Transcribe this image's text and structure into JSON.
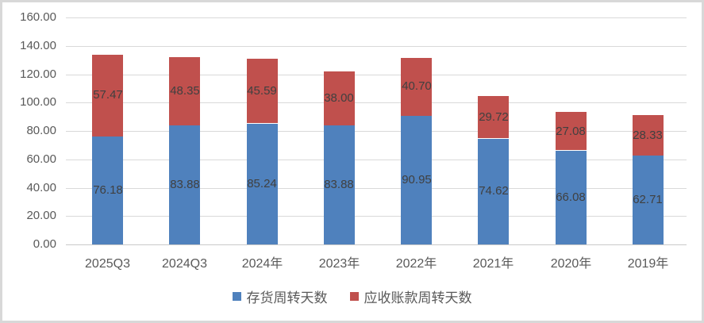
{
  "chart_data": {
    "type": "bar",
    "stacked": true,
    "title": "",
    "xlabel": "",
    "ylabel": "",
    "categories": [
      "2025Q3",
      "2024Q3",
      "2024年",
      "2023年",
      "2022年",
      "2021年",
      "2020年",
      "2019年"
    ],
    "series": [
      {
        "name": "存货周转天数",
        "color": "#4F81BD",
        "values": [
          76.18,
          83.88,
          85.24,
          83.88,
          90.95,
          74.62,
          66.08,
          62.71
        ]
      },
      {
        "name": "应收账款周转天数",
        "color": "#C0504D",
        "values": [
          57.47,
          48.35,
          45.59,
          38.0,
          40.7,
          29.72,
          27.08,
          28.33
        ]
      }
    ],
    "ylim": [
      0,
      160
    ],
    "ytick_step": 20,
    "ytick_labels": [
      "0.00",
      "20.00",
      "40.00",
      "60.00",
      "80.00",
      "100.00",
      "120.00",
      "140.00",
      "160.00"
    ],
    "value_label_decimals": 2,
    "grid": true,
    "legend_position": "bottom"
  },
  "styles": {
    "gridline_color": "#D9D9D9",
    "axis_line_color": "#C9C9C9",
    "tick_text_color": "#595959",
    "data_label_color": "#404040",
    "frame_border_color": "#D8D8D8",
    "background": "#FFFFFF"
  }
}
